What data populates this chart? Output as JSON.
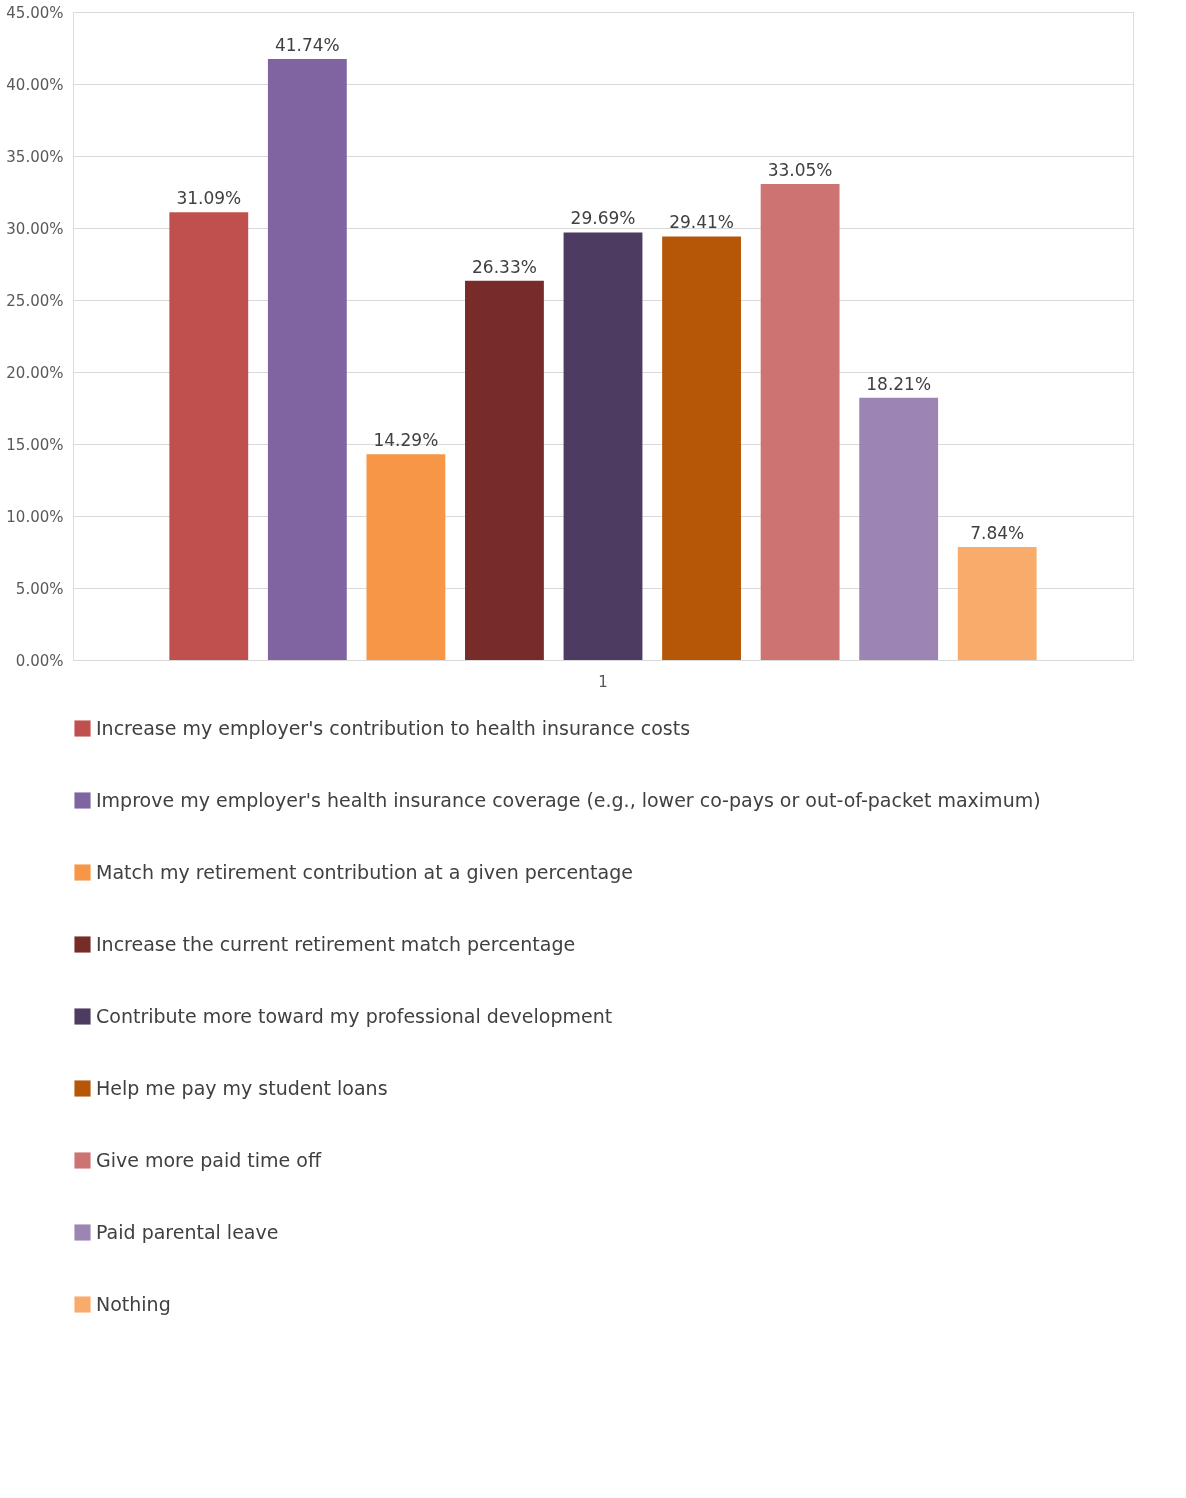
{
  "chart_data": {
    "type": "bar",
    "categories": [
      "1"
    ],
    "series": [
      {
        "name": "Increase my employer's contribution to health insurance costs",
        "color": "#c0504d",
        "values": [
          31.09
        ],
        "value_labels": [
          "31.09%"
        ]
      },
      {
        "name": "Improve my employer's health insurance coverage (e.g., lower co-pays or out-of-packet maximum)",
        "color": "#8064a2",
        "values": [
          41.74
        ],
        "value_labels": [
          "41.74%"
        ]
      },
      {
        "name": "Match my retirement contribution at a given percentage",
        "color": "#f79646",
        "values": [
          14.29
        ],
        "value_labels": [
          "14.29%"
        ]
      },
      {
        "name": "Increase the current retirement match percentage",
        "color": "#772c2a",
        "values": [
          26.33
        ],
        "value_labels": [
          "26.33%"
        ]
      },
      {
        "name": "Contribute more toward my professional development",
        "color": "#4d3b62",
        "values": [
          29.69
        ],
        "value_labels": [
          "29.69%"
        ]
      },
      {
        "name": "Help me pay my student loans",
        "color": "#b65708",
        "values": [
          29.41
        ],
        "value_labels": [
          "29.41%"
        ]
      },
      {
        "name": "Give more paid time off",
        "color": "#cd7371",
        "values": [
          33.05
        ],
        "value_labels": [
          "33.05%"
        ]
      },
      {
        "name": "Paid parental leave",
        "color": "#9c85b4",
        "values": [
          18.21
        ],
        "value_labels": [
          "18.21%"
        ]
      },
      {
        "name": "Nothing",
        "color": "#f9ab6b",
        "values": [
          7.84
        ],
        "value_labels": [
          "7.84%"
        ]
      }
    ],
    "ylim": [
      0,
      45
    ],
    "yticks": [
      {
        "value": 0,
        "label": "0.00%"
      },
      {
        "value": 5,
        "label": "5.00%"
      },
      {
        "value": 10,
        "label": "10.00%"
      },
      {
        "value": 15,
        "label": "15.00%"
      },
      {
        "value": 20,
        "label": "20.00%"
      },
      {
        "value": 25,
        "label": "25.00%"
      },
      {
        "value": 30,
        "label": "30.00%"
      },
      {
        "value": 35,
        "label": "35.00%"
      },
      {
        "value": 40,
        "label": "40.00%"
      },
      {
        "value": 45,
        "label": "45.00%"
      }
    ],
    "grid": "y",
    "legend": "bottom"
  }
}
